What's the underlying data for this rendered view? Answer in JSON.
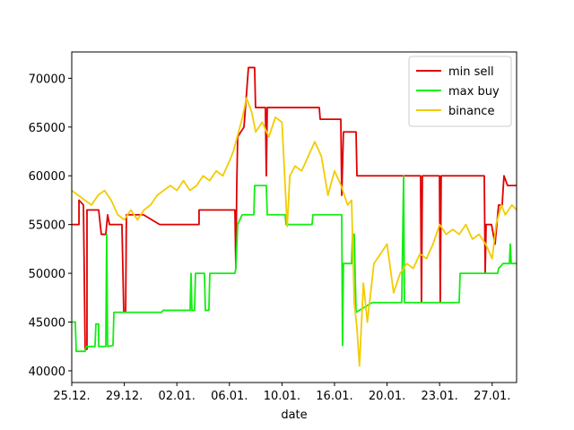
{
  "chart_data": {
    "type": "line",
    "xlabel": "date",
    "xlim": [
      0,
      33.86
    ],
    "ylim": [
      38800,
      72700
    ],
    "xticks": [
      {
        "value": 0,
        "label": "25.12."
      },
      {
        "value": 4,
        "label": "29.12."
      },
      {
        "value": 8,
        "label": "02.01."
      },
      {
        "value": 12,
        "label": "06.01."
      },
      {
        "value": 16,
        "label": "10.01."
      },
      {
        "value": 20,
        "label": "16.01."
      },
      {
        "value": 24,
        "label": "20.01."
      },
      {
        "value": 28,
        "label": "23.01."
      },
      {
        "value": 32,
        "label": "27.01."
      }
    ],
    "yticks": [
      40000,
      45000,
      50000,
      55000,
      60000,
      65000,
      70000
    ],
    "legend": "upper right",
    "series": [
      {
        "name": "min sell",
        "color": "#e00000",
        "x": [
          0,
          0.55,
          0.55,
          0.89,
          1.02,
          1.16,
          1.16,
          2.05,
          2.25,
          2.59,
          2.73,
          2.87,
          3.82,
          3.96,
          4.1,
          4.16,
          5.46,
          6.69,
          9.69,
          9.69,
          12.42,
          12.49,
          12.56,
          12.63,
          13.11,
          13.45,
          13.92,
          13.99,
          14.74,
          14.81,
          14.88,
          18.84,
          18.91,
          20.48,
          20.55,
          20.68,
          21.64,
          21.71,
          26.55,
          26.62,
          26.69,
          27.99,
          28.05,
          28.12,
          31.4,
          31.47,
          31.54,
          31.95,
          32.22,
          32.49,
          32.76,
          32.9,
          33.17,
          33.86
        ],
        "values": [
          55000,
          55000,
          57500,
          57000,
          42200,
          42200,
          56500,
          56500,
          54000,
          54000,
          56000,
          55000,
          55000,
          46000,
          46000,
          56000,
          56000,
          55000,
          55000,
          56500,
          56500,
          50500,
          59000,
          64000,
          65000,
          71100,
          71100,
          67000,
          67000,
          60000,
          67000,
          67000,
          65800,
          65800,
          58000,
          64500,
          64500,
          60000,
          60000,
          47000,
          60000,
          60000,
          47000,
          60000,
          60000,
          50000,
          55000,
          55000,
          53000,
          57000,
          57000,
          60000,
          59000,
          59000
        ]
      },
      {
        "name": "max buy",
        "color": "#11ee11",
        "x": [
          0,
          0.27,
          0.34,
          1.02,
          1.09,
          1.77,
          1.84,
          2.05,
          2.05,
          2.59,
          2.66,
          2.73,
          3.14,
          3.21,
          6.83,
          6.96,
          9.01,
          9.08,
          9.15,
          9.35,
          9.42,
          10.1,
          10.17,
          10.44,
          10.51,
          12.42,
          12.49,
          12.63,
          12.97,
          13.86,
          13.92,
          14.81,
          14.88,
          16.25,
          16.31,
          18.29,
          18.36,
          20.55,
          20.61,
          20.68,
          21.3,
          21.37,
          21.5,
          21.64,
          22.87,
          25.12,
          25.26,
          25.32,
          29.49,
          29.56,
          32.42,
          32.49,
          32.83,
          33.31,
          33.38,
          33.45,
          33.86
        ],
        "values": [
          45000,
          45000,
          42000,
          42000,
          42500,
          42500,
          44800,
          44800,
          42500,
          42500,
          54000,
          42500,
          42600,
          46000,
          46000,
          46200,
          46200,
          50000,
          46200,
          46200,
          50000,
          50000,
          46200,
          46200,
          50000,
          50000,
          50500,
          55000,
          56000,
          56000,
          59000,
          59000,
          56000,
          56000,
          55000,
          55000,
          56000,
          56000,
          42600,
          51000,
          51000,
          54000,
          54000,
          46000,
          47000,
          47000,
          60000,
          47000,
          47000,
          50000,
          50000,
          50500,
          51000,
          51000,
          53000,
          51000,
          51000
        ]
      },
      {
        "name": "binance",
        "color": "#f2cc00",
        "x": [
          0,
          0.5,
          1,
          1.5,
          2,
          2.5,
          3,
          3.5,
          4,
          4.5,
          5,
          5.5,
          6,
          6.5,
          7,
          7.5,
          8,
          8.5,
          9,
          9.5,
          10,
          10.5,
          11,
          11.5,
          12,
          12.3,
          12.6,
          13,
          13.3,
          13.7,
          14,
          14.5,
          15,
          15.5,
          16,
          16.4,
          16.6,
          17,
          17.5,
          18,
          18.5,
          19,
          19.5,
          20,
          20.5,
          21,
          21.3,
          21.5,
          21.7,
          21.9,
          22.2,
          22.5,
          23,
          23.5,
          24,
          24.5,
          25,
          25.5,
          26,
          26.5,
          27,
          27.5,
          28,
          28.5,
          29,
          29.5,
          30,
          30.5,
          31,
          31.5,
          32,
          32.3,
          32.7,
          33,
          33.5,
          33.86
        ],
        "values": [
          58500,
          58000,
          57500,
          57000,
          58000,
          58500,
          57500,
          56000,
          55500,
          56500,
          55500,
          56500,
          57000,
          58000,
          58500,
          59000,
          58500,
          59500,
          58500,
          59000,
          60000,
          59500,
          60500,
          60000,
          61500,
          62500,
          64000,
          66000,
          68000,
          66500,
          64500,
          65500,
          64000,
          66000,
          65500,
          54800,
          60000,
          61000,
          60500,
          62000,
          63500,
          62000,
          58000,
          60500,
          59000,
          57000,
          57500,
          47000,
          44500,
          40500,
          49000,
          45000,
          51000,
          52000,
          53000,
          48000,
          50000,
          51000,
          50500,
          52000,
          51500,
          53000,
          55000,
          54000,
          54500,
          54000,
          55000,
          53500,
          54000,
          53000,
          51500,
          55000,
          57000,
          56000,
          57000,
          56500
        ]
      }
    ]
  }
}
